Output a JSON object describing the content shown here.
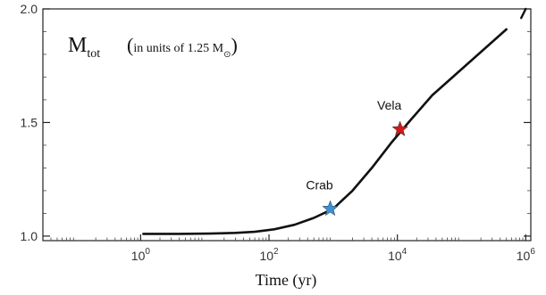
{
  "chart_data": {
    "type": "line",
    "title": {
      "symbol": "M",
      "subscript": "tot",
      "note": "in units of 1.25 M",
      "note_sub": "⊙"
    },
    "xlabel": "Time (yr)",
    "ylabel": "",
    "x_scale": "log",
    "xlim": [
      0.03,
      1200000
    ],
    "ylim": [
      0.98,
      2.0
    ],
    "x_ticks": [
      {
        "value": 1,
        "base": "10",
        "exp": "0"
      },
      {
        "value": 100,
        "base": "10",
        "exp": "2"
      },
      {
        "value": 10000,
        "base": "10",
        "exp": "4"
      },
      {
        "value": 1000000,
        "base": "10",
        "exp": "6"
      }
    ],
    "y_ticks": [
      {
        "value": 1.0,
        "label": "1.0"
      },
      {
        "value": 1.5,
        "label": "1.5"
      },
      {
        "value": 2.0,
        "label": "2.0"
      }
    ],
    "grid": false,
    "series": [
      {
        "color": "#111111",
        "points": [
          [
            1.1,
            1.01
          ],
          [
            4,
            1.01
          ],
          [
            12,
            1.011
          ],
          [
            30,
            1.014
          ],
          [
            60,
            1.019
          ],
          [
            120,
            1.03
          ],
          [
            250,
            1.05
          ],
          [
            500,
            1.08
          ],
          [
            1000,
            1.12
          ],
          [
            2000,
            1.2
          ],
          [
            4000,
            1.3
          ],
          [
            8000,
            1.41
          ],
          [
            16000,
            1.51
          ],
          [
            35000,
            1.62
          ],
          [
            80000,
            1.71
          ],
          [
            200000,
            1.81
          ],
          [
            500000,
            1.91
          ]
        ]
      }
    ],
    "annotations": [
      {
        "label": "Crab",
        "x": 900,
        "y": 1.12,
        "color": "#3a8fd6"
      },
      {
        "label": "Vela",
        "x": 11000,
        "y": 1.47,
        "color": "#d11a1a"
      }
    ],
    "extra_segment": [
      [
        850000,
        1.96
      ],
      [
        1000000,
        2.0
      ]
    ]
  }
}
